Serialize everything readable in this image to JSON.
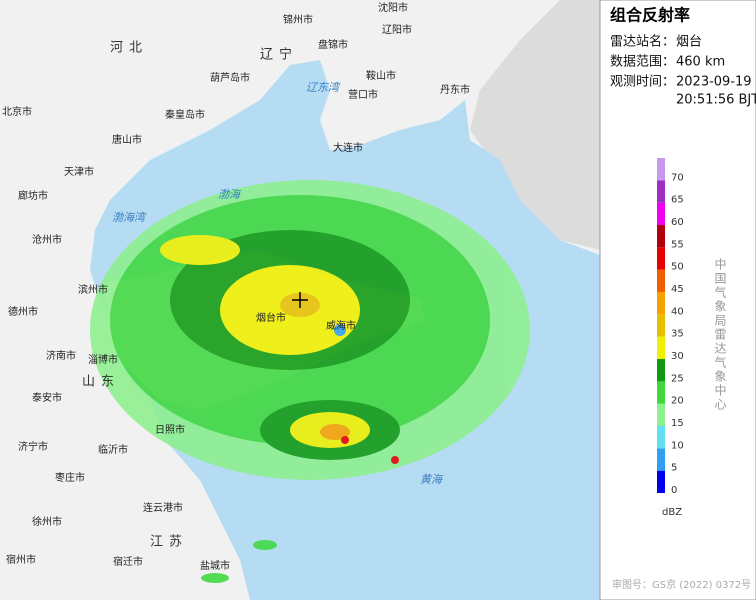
{
  "panel": {
    "title": "组合反射率",
    "info": [
      {
        "label": "雷达站名：",
        "value": "烟台"
      },
      {
        "label": "数据范围：",
        "value": "460 km"
      },
      {
        "label": "观测时间：",
        "value": "2023-09-19",
        "value2": "20:51:56 BJT"
      }
    ],
    "legend": {
      "ticks": [
        0,
        5,
        10,
        15,
        20,
        25,
        30,
        35,
        40,
        45,
        50,
        55,
        60,
        65,
        70
      ],
      "colors": [
        "#0000f0",
        "#2f9ff0",
        "#60e0f0",
        "#8ef08e",
        "#3fd83f",
        "#119a11",
        "#f0f000",
        "#e6c000",
        "#f7a100",
        "#f06000",
        "#e80000",
        "#b00010",
        "#f000f0",
        "#9a2fc0",
        "#c79aef"
      ],
      "unit": "dBZ"
    },
    "credit": "中国气象局雷达气象中心",
    "approval": "审图号：GS京 (2022) 0372号"
  },
  "map": {
    "labels": [
      "北京市",
      "天津市",
      "廊坊市",
      "沧州市",
      "唐山市",
      "秦皇岛市",
      "葫芦岛市",
      "锦州市",
      "盘锦市",
      "营口市",
      "鞍山市",
      "辽阳市",
      "沈阳市",
      "丹东市",
      "大连市",
      "烟台市",
      "威海市",
      "滨州市",
      "德州市",
      "济南市",
      "淄博市",
      "泰安市",
      "济宁市",
      "临沂市",
      "日照市",
      "枣庄市",
      "徐州市",
      "连云港市",
      "宿迁市",
      "盐城市",
      "宿州市",
      "渤海",
      "渤海湾",
      "辽东湾",
      "黄海",
      "河北",
      "辽宁",
      "山东",
      "江苏"
    ]
  }
}
